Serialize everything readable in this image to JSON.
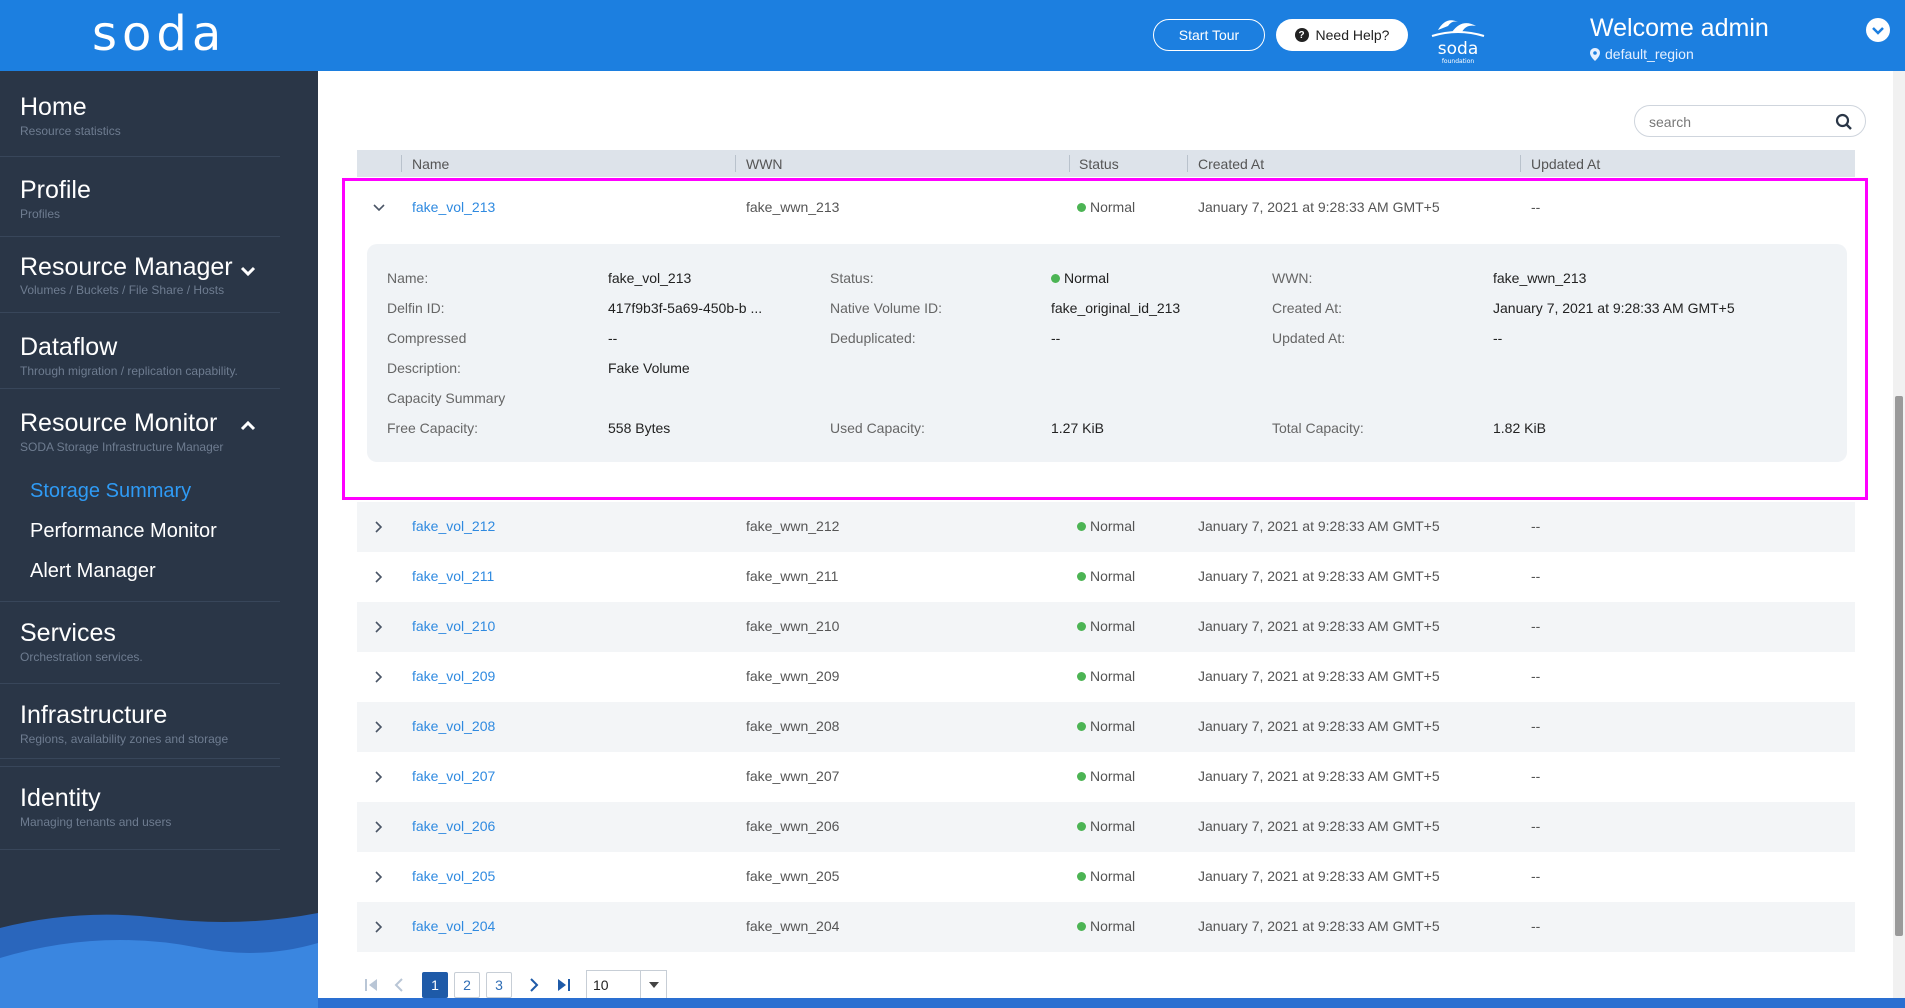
{
  "header": {
    "logo": "soda",
    "start_tour": "Start Tour",
    "need_help": "Need Help?",
    "welcome": "Welcome admin",
    "region": "default_region",
    "brand_text": "soda",
    "brand_sub": "foundation"
  },
  "sidebar": {
    "items": [
      {
        "title": "Home",
        "sub": "Resource statistics"
      },
      {
        "title": "Profile",
        "sub": "Profiles"
      },
      {
        "title": "Resource Manager",
        "sub": "Volumes / Buckets / File Share / Hosts"
      },
      {
        "title": "Dataflow",
        "sub": "Through migration / replication capability."
      },
      {
        "title": "Resource Monitor",
        "sub": "SODA Storage Infrastructure Manager"
      },
      {
        "title": "Services",
        "sub": "Orchestration services."
      },
      {
        "title": "Infrastructure",
        "sub": "Regions, availability zones and storage"
      },
      {
        "title": "Identity",
        "sub": "Managing tenants and users"
      }
    ],
    "sub_items": [
      "Storage Summary",
      "Performance Monitor",
      "Alert Manager"
    ]
  },
  "search": {
    "placeholder": "search"
  },
  "table": {
    "columns": [
      "Name",
      "WWN",
      "Status",
      "Created At",
      "Updated At"
    ],
    "expanded_row": {
      "name": "fake_vol_213",
      "wwn": "fake_wwn_213",
      "status": "Normal",
      "created": "January 7, 2021 at 9:28:33 AM GMT+5",
      "updated": "--"
    },
    "rows": [
      {
        "name": "fake_vol_212",
        "wwn": "fake_wwn_212",
        "status": "Normal",
        "created": "January 7, 2021 at 9:28:33 AM GMT+5",
        "updated": "--"
      },
      {
        "name": "fake_vol_211",
        "wwn": "fake_wwn_211",
        "status": "Normal",
        "created": "January 7, 2021 at 9:28:33 AM GMT+5",
        "updated": "--"
      },
      {
        "name": "fake_vol_210",
        "wwn": "fake_wwn_210",
        "status": "Normal",
        "created": "January 7, 2021 at 9:28:33 AM GMT+5",
        "updated": "--"
      },
      {
        "name": "fake_vol_209",
        "wwn": "fake_wwn_209",
        "status": "Normal",
        "created": "January 7, 2021 at 9:28:33 AM GMT+5",
        "updated": "--"
      },
      {
        "name": "fake_vol_208",
        "wwn": "fake_wwn_208",
        "status": "Normal",
        "created": "January 7, 2021 at 9:28:33 AM GMT+5",
        "updated": "--"
      },
      {
        "name": "fake_vol_207",
        "wwn": "fake_wwn_207",
        "status": "Normal",
        "created": "January 7, 2021 at 9:28:33 AM GMT+5",
        "updated": "--"
      },
      {
        "name": "fake_vol_206",
        "wwn": "fake_wwn_206",
        "status": "Normal",
        "created": "January 7, 2021 at 9:28:33 AM GMT+5",
        "updated": "--"
      },
      {
        "name": "fake_vol_205",
        "wwn": "fake_wwn_205",
        "status": "Normal",
        "created": "January 7, 2021 at 9:28:33 AM GMT+5",
        "updated": "--"
      },
      {
        "name": "fake_vol_204",
        "wwn": "fake_wwn_204",
        "status": "Normal",
        "created": "January 7, 2021 at 9:28:33 AM GMT+5",
        "updated": "--"
      }
    ]
  },
  "detail": {
    "labels": {
      "name": "Name:",
      "delfin_id": "Delfin ID:",
      "compressed": "Compressed",
      "description": "Description:",
      "capacity_summary": "Capacity Summary",
      "free_capacity": "Free Capacity:",
      "status": "Status:",
      "native_volume_id": "Native Volume ID:",
      "deduplicated": "Deduplicated:",
      "used_capacity": "Used Capacity:",
      "wwn": "WWN:",
      "created_at": "Created At:",
      "updated_at": "Updated At:",
      "total_capacity": "Total Capacity:"
    },
    "values": {
      "name": "fake_vol_213",
      "delfin_id": "417f9b3f-5a69-450b-b ...",
      "compressed": "--",
      "description": "Fake Volume",
      "free_capacity": "558 Bytes",
      "status": "Normal",
      "native_volume_id": "fake_original_id_213",
      "deduplicated": "--",
      "used_capacity": "1.27 KiB",
      "wwn": "fake_wwn_213",
      "created_at": "January 7, 2021 at 9:28:33 AM GMT+5",
      "updated_at": "--",
      "total_capacity": "1.82 KiB"
    }
  },
  "pagination": {
    "pages": [
      "1",
      "2",
      "3"
    ],
    "active_page": "1",
    "rows_per_page": "10"
  },
  "colors": {
    "header": "#1c7fe0",
    "sidebar": "#2a3647",
    "link": "#2f8ae0",
    "status_ok": "#4cb454",
    "highlight": "#ff00ff"
  }
}
